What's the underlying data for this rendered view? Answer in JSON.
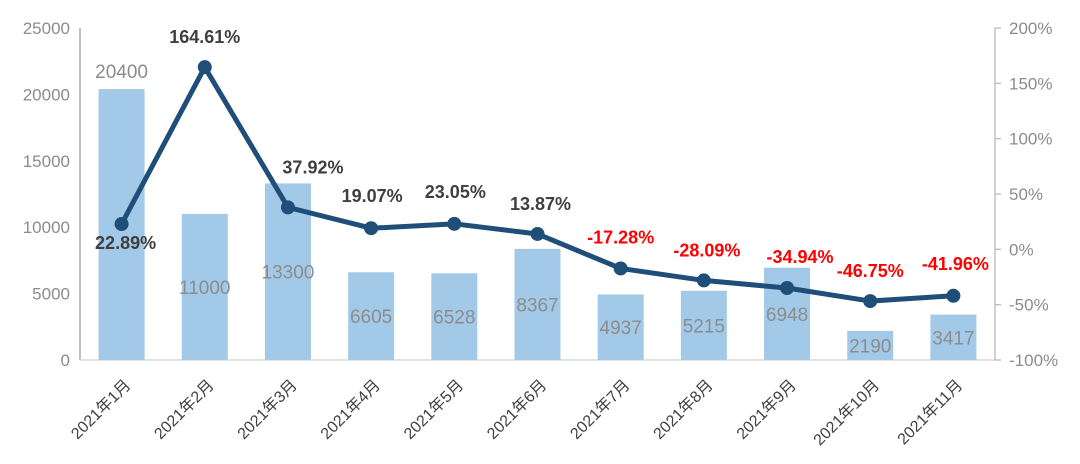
{
  "chart_data": {
    "type": "combo",
    "title": "",
    "grid": false,
    "legend_position": "none",
    "categories": [
      "2021年1月",
      "2021年2月",
      "2021年3月",
      "2021年4月",
      "2021年5月",
      "2021年6月",
      "2021年7月",
      "2021年8月",
      "2021年9月",
      "2021年10月",
      "2021年11月"
    ],
    "series": [
      {
        "type": "bar",
        "values": [
          20400,
          11000,
          13300,
          6605,
          6528,
          8367,
          4937,
          5215,
          6948,
          2190,
          3417
        ],
        "data_labels": [
          "20400",
          "11000",
          "13300",
          "6605",
          "6528",
          "8367",
          "4937",
          "5215",
          "6948",
          "2190",
          "3417"
        ],
        "label_placement": [
          "above",
          "inside",
          "inside",
          "inside",
          "inside",
          "inside",
          "inside",
          "inside",
          "inside",
          "inside",
          "inside"
        ]
      },
      {
        "type": "line",
        "values": [
          22.89,
          164.61,
          37.92,
          19.07,
          23.05,
          13.87,
          -17.28,
          -28.09,
          -34.94,
          -46.75,
          -41.96
        ],
        "data_labels": [
          "22.89%",
          "164.61%",
          "37.92%",
          "19.07%",
          "23.05%",
          "13.87%",
          "-17.28%",
          "-28.09%",
          "-34.94%",
          "-46.75%",
          "-41.96%"
        ],
        "label_offsets": [
          [
            4,
            25
          ],
          [
            0,
            -24
          ],
          [
            25,
            -34
          ],
          [
            1,
            -26
          ],
          [
            1,
            -26
          ],
          [
            3,
            -24
          ],
          [
            0,
            -25
          ],
          [
            3,
            -24
          ],
          [
            13,
            -25
          ],
          [
            0,
            -24
          ],
          [
            2,
            -26
          ]
        ]
      }
    ],
    "left_axis": {
      "min": 0,
      "max": 25000,
      "tick_labels": [
        "0",
        "5000",
        "10000",
        "15000",
        "20000",
        "25000"
      ]
    },
    "right_axis": {
      "min": -100,
      "max": 200,
      "tick_labels": [
        "-100%",
        "-50%",
        "0%",
        "50%",
        "100%",
        "150%",
        "200%"
      ]
    },
    "colors": {
      "bar": "#A3C9E8",
      "line": "#1F4E79",
      "positive_label": "#3F3F3F",
      "negative_label": "#FF0000",
      "bar_value_label": "#8C8C8C",
      "axis_tick_label": "#8C8C8C",
      "x_axis_label": "#404040",
      "axis_line_left": "#A6A6A6",
      "axis_line_bottom": "#D9D9D9",
      "axis_line_right": "#BFBFBF",
      "background": "#FFFFFF"
    }
  }
}
